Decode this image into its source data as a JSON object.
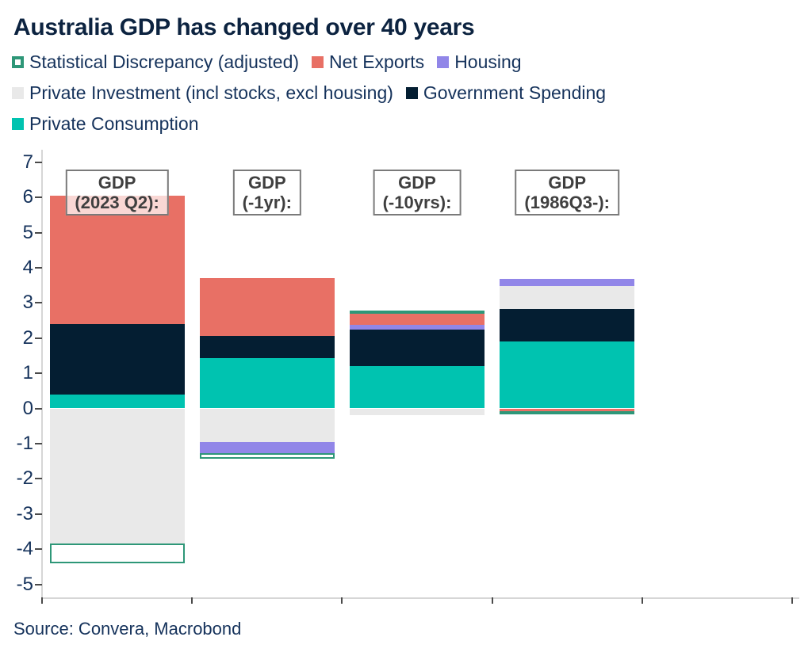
{
  "title": "Australia GDP has changed over 40 years",
  "source": "Source: Convera, Macrobond",
  "colors": {
    "title_text": "#0C2340",
    "body_text": "#15325B",
    "axis_line": "#D6D6D6",
    "tick_mark": "#4A4A4A",
    "box_border": "#7A7A7A",
    "box_text": "#3F3F3F",
    "box_bg": "rgba(255,255,255,0.72)",
    "series": {
      "discrepancy": "#2E9778",
      "net_exports": "#E87065",
      "housing": "#9186E8",
      "investment": "#E9E9E9",
      "government": "#041E32",
      "consumption": "#00C3B0"
    }
  },
  "series": {
    "discrepancy": {
      "label": "Statistical Discrepancy (adjusted)",
      "swatch": "hollow"
    },
    "net_exports": {
      "label": "Net Exports",
      "swatch": "filled"
    },
    "housing": {
      "label": "Housing",
      "swatch": "filled"
    },
    "investment": {
      "label": "Private Investment (incl stocks, excl housing)",
      "swatch": "filled"
    },
    "government": {
      "label": "Government Spending",
      "swatch": "filled"
    },
    "consumption": {
      "label": "Private Consumption",
      "swatch": "filled"
    }
  },
  "legend_rows": [
    [
      "discrepancy",
      "net_exports",
      "housing"
    ],
    [
      "investment",
      "government"
    ],
    [
      "consumption"
    ]
  ],
  "chart_data": {
    "type": "bar",
    "stacked": true,
    "title": "Australia GDP has changed over 40 years",
    "ylim": [
      -5,
      7
    ],
    "yticks": [
      7,
      6,
      5,
      4,
      3,
      2,
      1,
      0,
      -1,
      -2,
      -3,
      -4,
      -5
    ],
    "x_slots": 5,
    "legend_position": "top",
    "grid": false,
    "bars": [
      {
        "label": [
          "GDP",
          "(2023 Q2):"
        ],
        "segments": [
          {
            "series": "consumption",
            "value": 0.4
          },
          {
            "series": "government",
            "value": 2.0
          },
          {
            "series": "net_exports",
            "value": 3.65
          },
          {
            "series": "investment",
            "value": -3.85
          },
          {
            "series": "discrepancy",
            "value": -0.55
          }
        ]
      },
      {
        "label": [
          "GDP",
          "(-1yr):"
        ],
        "segments": [
          {
            "series": "consumption",
            "value": 1.43
          },
          {
            "series": "government",
            "value": 0.63
          },
          {
            "series": "net_exports",
            "value": 1.65
          },
          {
            "series": "investment",
            "value": -0.95
          },
          {
            "series": "housing",
            "value": -0.32
          },
          {
            "series": "discrepancy",
            "value": -0.17
          }
        ]
      },
      {
        "label": [
          "GDP",
          "(-10yrs):"
        ],
        "segments": [
          {
            "series": "consumption",
            "value": 1.21
          },
          {
            "series": "government",
            "value": 1.02
          },
          {
            "series": "housing",
            "value": 0.14
          },
          {
            "series": "net_exports",
            "value": 0.36
          },
          {
            "series": "discrepancy",
            "value": 0.06
          },
          {
            "series": "investment",
            "value": -0.2
          }
        ]
      },
      {
        "label": [
          "GDP",
          "(1986Q3-):"
        ],
        "segments": [
          {
            "series": "consumption",
            "value": 1.9
          },
          {
            "series": "government",
            "value": 0.93
          },
          {
            "series": "investment",
            "value": 0.65
          },
          {
            "series": "housing",
            "value": 0.21
          },
          {
            "series": "net_exports",
            "value": -0.09
          },
          {
            "series": "discrepancy",
            "value": -0.06
          }
        ]
      }
    ]
  }
}
